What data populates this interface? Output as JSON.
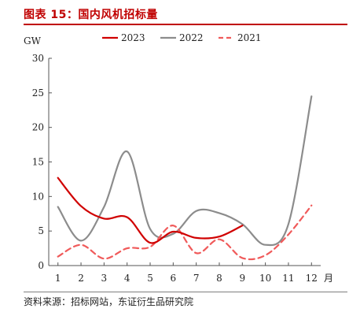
{
  "figure": {
    "title": "图表 15：国内风机招标量",
    "source": "资料来源：招标网站，东证衍生品研究院"
  },
  "chart_data": {
    "type": "line",
    "title": "",
    "ylabel": "GW",
    "xlabel": "月",
    "x": [
      1,
      2,
      3,
      4,
      5,
      6,
      7,
      8,
      9,
      10,
      11,
      12
    ],
    "ylim": [
      0,
      30
    ],
    "yticks": [
      0,
      5,
      10,
      15,
      20,
      25,
      30
    ],
    "grid": false,
    "legend_position": "top",
    "series": [
      {
        "name": "2023",
        "color": "#d00000",
        "dash": "solid",
        "values": [
          12.7,
          8.6,
          6.8,
          7.0,
          3.3,
          4.9,
          4.0,
          4.2,
          5.8,
          null,
          null,
          null
        ]
      },
      {
        "name": "2022",
        "color": "#8c8c8c",
        "dash": "solid",
        "values": [
          8.5,
          3.6,
          8.5,
          16.5,
          5.3,
          4.6,
          7.9,
          7.6,
          6.0,
          3.0,
          6.0,
          24.5
        ]
      },
      {
        "name": "2021",
        "color": "#f05a5a",
        "dash": "dashed",
        "values": [
          1.3,
          3.0,
          1.0,
          2.5,
          2.7,
          5.8,
          1.8,
          3.8,
          1.1,
          1.5,
          4.5,
          8.7
        ]
      }
    ]
  }
}
